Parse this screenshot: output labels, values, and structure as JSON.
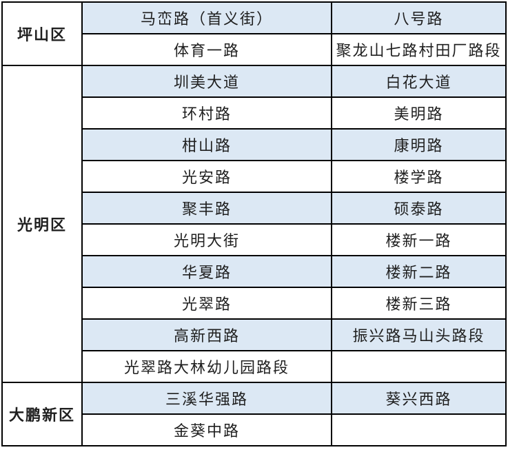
{
  "table": {
    "districts": [
      {
        "name": "坪山区",
        "rows": [
          [
            "马峦路（首义街）",
            "八号路"
          ],
          [
            "体育一路",
            "聚龙山七路村田厂路段"
          ]
        ]
      },
      {
        "name": "光明区",
        "rows": [
          [
            "圳美大道",
            "白花大道"
          ],
          [
            "环村路",
            "美明路"
          ],
          [
            "柑山路",
            "康明路"
          ],
          [
            "光安路",
            "楼学路"
          ],
          [
            "聚丰路",
            "硕泰路"
          ],
          [
            "光明大街",
            "楼新一路"
          ],
          [
            "华夏路",
            "楼新二路"
          ],
          [
            "光翠路",
            "楼新三路"
          ],
          [
            "高新西路",
            "振兴路马山头路段"
          ],
          [
            "光翠路大林幼儿园路段",
            ""
          ]
        ]
      },
      {
        "name": "大鹏新区",
        "rows": [
          [
            "三溪华强路",
            "葵兴西路"
          ],
          [
            "金葵中路",
            ""
          ]
        ]
      }
    ],
    "colors": {
      "stripe": "#dce8f4",
      "border": "#000000",
      "text": "#1f1f1f"
    }
  }
}
